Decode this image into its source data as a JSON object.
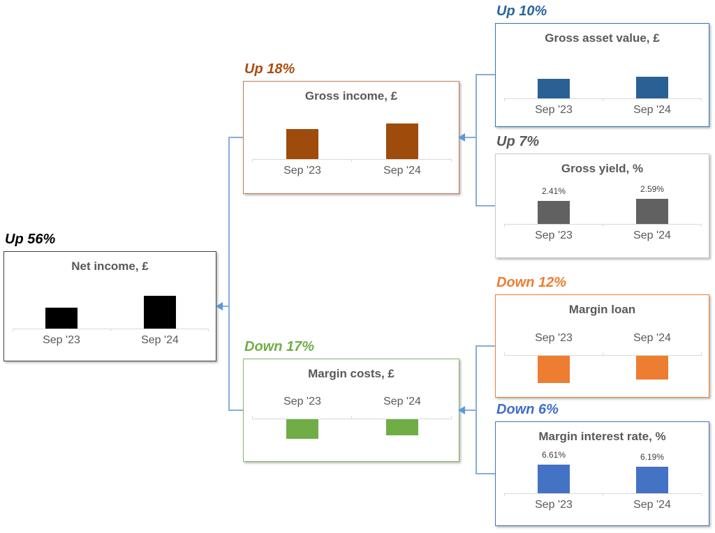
{
  "page": {
    "background": "#ffffff"
  },
  "connector": {
    "line_color": "#85ADDC",
    "arrow_color": "#5B9BD5"
  },
  "nodes": {
    "net_income": {
      "change_label": "Up 56%",
      "title": "Net income, £",
      "categories": [
        "Sep '23",
        "Sep '24"
      ],
      "values": [
        1.0,
        1.56
      ],
      "bar_direction": "up",
      "colors": {
        "bar": "#000000",
        "border": "#404040",
        "label": "#000000"
      }
    },
    "gross_income": {
      "change_label": "Up 18%",
      "title": "Gross income, £",
      "categories": [
        "Sep '23",
        "Sep '24"
      ],
      "values": [
        1.0,
        1.18
      ],
      "bar_direction": "up",
      "colors": {
        "bar": "#9E4B0C",
        "border": "#BE7C4F",
        "label": "#A84D10"
      }
    },
    "margin_costs": {
      "change_label": "Down 17%",
      "title": "Margin costs, £",
      "categories": [
        "Sep '23",
        "Sep '24"
      ],
      "values": [
        1.0,
        0.83
      ],
      "bar_direction": "down",
      "colors": {
        "bar": "#70AD47",
        "border": "#84B962",
        "label": "#70AD47"
      }
    },
    "gross_asset_value": {
      "change_label": "Up 10%",
      "title": "Gross asset value, £",
      "categories": [
        "Sep '23",
        "Sep '24"
      ],
      "values": [
        1.0,
        1.1
      ],
      "bar_direction": "up",
      "colors": {
        "bar": "#2A6195",
        "border": "#2E74B5",
        "label": "#2A659E"
      }
    },
    "gross_yield": {
      "change_label": "Up 7%",
      "title": "Gross yield, %",
      "categories": [
        "Sep '23",
        "Sep '24"
      ],
      "values": [
        2.41,
        2.59
      ],
      "data_labels": [
        "2.41%",
        "2.59%"
      ],
      "bar_direction": "up",
      "colors": {
        "bar": "#616161",
        "border": "#C9C9C9",
        "label": "#595959"
      }
    },
    "margin_loan": {
      "change_label": "Down 12%",
      "title": "Margin loan",
      "categories": [
        "Sep '23",
        "Sep '24"
      ],
      "values": [
        1.0,
        0.88
      ],
      "bar_direction": "down",
      "colors": {
        "bar": "#ED7D31",
        "border": "#ED7D31",
        "label": "#ED7D31"
      }
    },
    "margin_interest_rate": {
      "change_label": "Down 6%",
      "title": "Margin interest rate, %",
      "categories": [
        "Sep '23",
        "Sep '24"
      ],
      "values": [
        6.61,
        6.19
      ],
      "data_labels": [
        "6.61%",
        "6.19%"
      ],
      "bar_direction": "up",
      "colors": {
        "bar": "#4472C4",
        "border": "#4472C4",
        "label": "#3F6EC7"
      }
    }
  },
  "edges": [
    {
      "from": [
        "gross_asset_value",
        "gross_yield"
      ],
      "to": "gross_income"
    },
    {
      "from": [
        "margin_loan",
        "margin_interest_rate"
      ],
      "to": "margin_costs"
    },
    {
      "from": [
        "gross_income",
        "margin_costs"
      ],
      "to": "net_income"
    }
  ],
  "chart_data": [
    {
      "id": "gross_asset_value",
      "type": "bar",
      "title": "Gross asset value, £",
      "categories": [
        "Sep '23",
        "Sep '24"
      ],
      "values": [
        1.0,
        1.1
      ],
      "value_basis": "indexed, Sep '23 = 1.00 (no value axis shown)",
      "annotation": "Up 10%",
      "legend": "off",
      "grid": "off"
    },
    {
      "id": "gross_yield",
      "type": "bar",
      "title": "Gross yield, %",
      "categories": [
        "Sep '23",
        "Sep '24"
      ],
      "values": [
        2.41,
        2.59
      ],
      "data_labels": [
        "2.41%",
        "2.59%"
      ],
      "annotation": "Up 7%",
      "legend": "off",
      "grid": "off"
    },
    {
      "id": "gross_income",
      "type": "bar",
      "title": "Gross income, £",
      "categories": [
        "Sep '23",
        "Sep '24"
      ],
      "values": [
        1.0,
        1.18
      ],
      "value_basis": "indexed, Sep '23 = 1.00 (no value axis shown)",
      "annotation": "Up 18%",
      "legend": "off",
      "grid": "off"
    },
    {
      "id": "margin_loan",
      "type": "bar",
      "title": "Margin loan",
      "categories": [
        "Sep '23",
        "Sep '24"
      ],
      "values": [
        1.0,
        0.88
      ],
      "value_basis": "indexed, Sep '23 = 1.00; drawn hanging below axis",
      "annotation": "Down 12%",
      "legend": "off",
      "grid": "off"
    },
    {
      "id": "margin_interest_rate",
      "type": "bar",
      "title": "Margin interest rate, %",
      "categories": [
        "Sep '23",
        "Sep '24"
      ],
      "values": [
        6.61,
        6.19
      ],
      "data_labels": [
        "6.61%",
        "6.19%"
      ],
      "annotation": "Down 6%",
      "legend": "off",
      "grid": "off"
    },
    {
      "id": "margin_costs",
      "type": "bar",
      "title": "Margin costs, £",
      "categories": [
        "Sep '23",
        "Sep '24"
      ],
      "values": [
        1.0,
        0.83
      ],
      "value_basis": "indexed, Sep '23 = 1.00; drawn hanging below axis",
      "annotation": "Down 17%",
      "legend": "off",
      "grid": "off"
    },
    {
      "id": "net_income",
      "type": "bar",
      "title": "Net income, £",
      "categories": [
        "Sep '23",
        "Sep '24"
      ],
      "values": [
        1.0,
        1.56
      ],
      "value_basis": "indexed, Sep '23 = 1.00 (no value axis shown)",
      "annotation": "Up 56%",
      "legend": "off",
      "grid": "off"
    }
  ]
}
